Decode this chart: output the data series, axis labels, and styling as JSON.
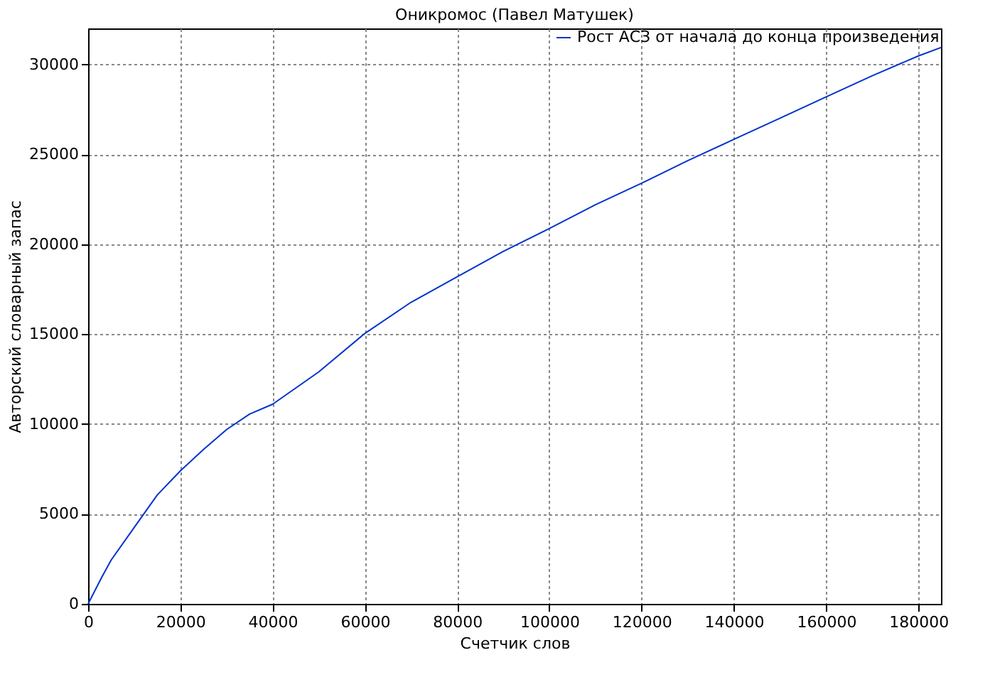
{
  "chart_data": {
    "type": "line",
    "title": "Оникромос (Павел Матушек)",
    "xlabel": "Счетчик слов",
    "ylabel": "Авторский словарный запас",
    "x": [
      0,
      3000,
      5000,
      10000,
      15000,
      20000,
      25000,
      30000,
      35000,
      40000,
      50000,
      60000,
      70000,
      80000,
      90000,
      100000,
      110000,
      120000,
      130000,
      140000,
      150000,
      160000,
      170000,
      180000,
      184900
    ],
    "series": [
      {
        "name": "Рост АСЗ от начала до конца произведения",
        "color": "#0033cc",
        "values": [
          0,
          1500,
          2440,
          4250,
          6060,
          7400,
          8580,
          9690,
          10550,
          11100,
          12900,
          15040,
          16770,
          18190,
          19600,
          20870,
          22200,
          23390,
          24650,
          25830,
          27010,
          28190,
          29370,
          30470,
          30940
        ]
      }
    ],
    "xlim": [
      0,
      184900
    ],
    "ylim": [
      0,
      32000
    ],
    "xticks": [
      0,
      20000,
      40000,
      60000,
      80000,
      100000,
      120000,
      140000,
      160000,
      180000
    ],
    "yticks": [
      0,
      5000,
      10000,
      15000,
      20000,
      25000,
      30000
    ],
    "grid": true,
    "legend": "top right",
    "line_style": "solid",
    "marker": "none"
  }
}
